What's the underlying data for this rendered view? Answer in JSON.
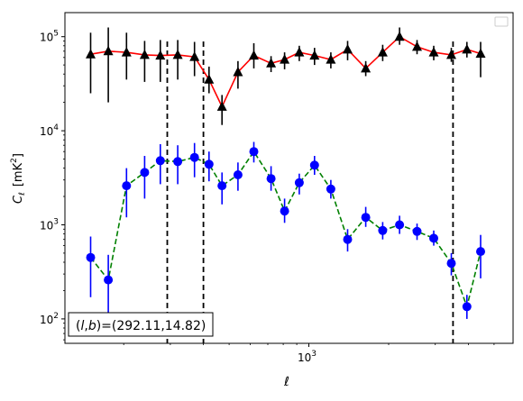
{
  "chart_data": {
    "type": "scatter",
    "xlabel": "ℓ",
    "xscale": "log",
    "yscale": "log",
    "xlim": [
      120,
      5900
    ],
    "ylim": [
      55,
      180000
    ],
    "x_tick_major": [
      {
        "value": 1000,
        "base": "10",
        "exp": "3"
      }
    ],
    "y_tick_major": [
      {
        "value": 100,
        "base": "10",
        "exp": "2"
      },
      {
        "value": 1000,
        "base": "10",
        "exp": "3"
      },
      {
        "value": 10000,
        "base": "10",
        "exp": "4"
      },
      {
        "value": 100000,
        "base": "10",
        "exp": "5"
      }
    ],
    "ylabel": {
      "symbol": "C",
      "sub": "ℓ",
      "unit_pre": "[mK",
      "unit_sup": "2",
      "unit_post": "]"
    },
    "vlines": [
      292.11,
      400,
      3500
    ],
    "annotation": {
      "pre": "(",
      "l": "l",
      "comma": ",",
      "b": "b",
      "post": ")=(292.11,14.82)"
    },
    "legend": "top-right",
    "series": [
      {
        "marker": "triangle",
        "marker_color": "#000000",
        "line_color": "#ff0000",
        "line_style": "solid",
        "x": [
          150,
          175,
          205,
          240,
          275,
          320,
          370,
          420,
          470,
          540,
          620,
          720,
          810,
          920,
          1050,
          1210,
          1400,
          1640,
          1900,
          2200,
          2560,
          2960,
          3450,
          3950,
          4450
        ],
        "y": [
          65000,
          70000,
          68000,
          64000,
          63000,
          64000,
          61000,
          35000,
          18000,
          42000,
          63000,
          52000,
          57000,
          68000,
          63000,
          57000,
          73000,
          46000,
          68000,
          100000,
          78000,
          68000,
          64000,
          73000,
          66000
        ],
        "ylow": [
          25000,
          20000,
          35000,
          33000,
          33000,
          35000,
          38000,
          25000,
          11500,
          28000,
          46000,
          42000,
          45000,
          55000,
          50000,
          46000,
          56000,
          38000,
          55000,
          82000,
          65000,
          56000,
          54000,
          60000,
          37000
        ],
        "yhigh": [
          110000,
          125000,
          110000,
          90000,
          92000,
          92000,
          88000,
          48000,
          24000,
          55000,
          85000,
          62000,
          68000,
          80000,
          76000,
          68000,
          90000,
          55000,
          82000,
          125000,
          92000,
          80000,
          76000,
          88000,
          88000
        ]
      },
      {
        "marker": "circle",
        "marker_color": "#0000ff",
        "line_color": "#008000",
        "line_style": "dashed",
        "x": [
          150,
          175,
          205,
          240,
          275,
          320,
          370,
          420,
          470,
          540,
          620,
          720,
          810,
          920,
          1050,
          1210,
          1400,
          1640,
          1900,
          2200,
          2560,
          2960,
          3450,
          3950,
          4450
        ],
        "y": [
          450,
          260,
          2600,
          3600,
          4800,
          4700,
          5200,
          4400,
          2600,
          3400,
          6000,
          3100,
          1400,
          2800,
          4300,
          2400,
          700,
          1200,
          870,
          1000,
          850,
          720,
          390,
          135,
          520
        ],
        "ylow": [
          170,
          95,
          1200,
          1900,
          2700,
          2700,
          3200,
          2900,
          1650,
          2300,
          4600,
          2300,
          1050,
          2100,
          3400,
          1900,
          520,
          950,
          700,
          800,
          690,
          600,
          290,
          100,
          270
        ],
        "yhigh": [
          750,
          480,
          4000,
          5400,
          7200,
          7000,
          7400,
          6000,
          3600,
          4600,
          7600,
          4200,
          1900,
          3500,
          5400,
          3000,
          900,
          1550,
          1070,
          1250,
          1030,
          870,
          500,
          180,
          780
        ]
      }
    ]
  }
}
